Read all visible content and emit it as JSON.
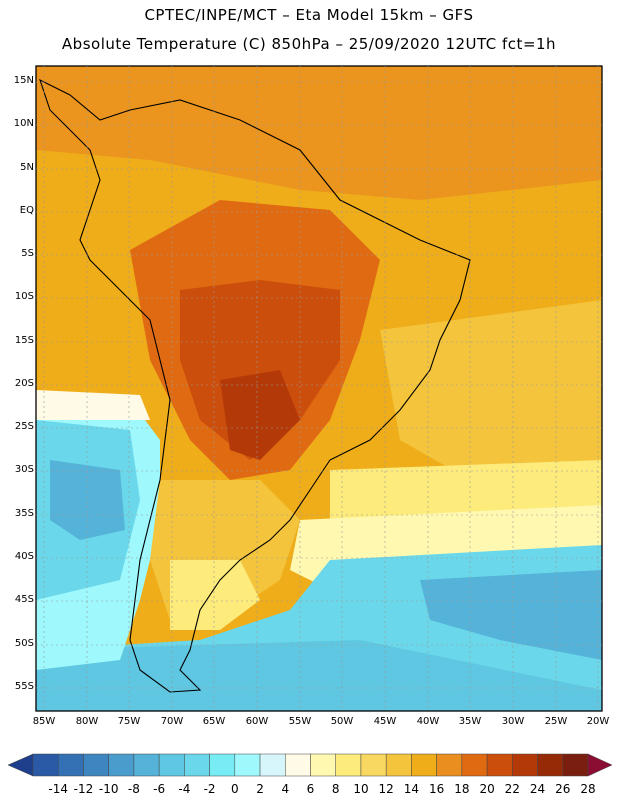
{
  "header": {
    "line1": "CPTEC/INPE/MCT –  Eta Model 15km – GFS",
    "line2": "Absolute Temperature (C) 850hPa – 25/09/2020 12UTC fct=1h"
  },
  "axes": {
    "lat_labels": [
      "15N",
      "10N",
      "5N",
      "EQ",
      "5S",
      "10S",
      "15S",
      "20S",
      "25S",
      "30S",
      "35S",
      "40S",
      "45S",
      "50S",
      "55S"
    ],
    "lon_labels": [
      "85W",
      "80W",
      "75W",
      "70W",
      "65W",
      "60W",
      "55W",
      "50W",
      "45W",
      "40W",
      "35W",
      "30W",
      "25W",
      "20W"
    ]
  },
  "colorbar": {
    "labels": [
      "-14",
      "-12",
      "-10",
      "-8",
      "-6",
      "-4",
      "-2",
      "0",
      "2",
      "4",
      "6",
      "8",
      "10",
      "12",
      "14",
      "16",
      "18",
      "20",
      "22",
      "24",
      "26",
      "28"
    ],
    "colors": [
      "#1e3f8c",
      "#2a5aa6",
      "#3470b4",
      "#3e86c0",
      "#4a9ccc",
      "#55b2d8",
      "#5fc7e2",
      "#6ad8ea",
      "#78ecf4",
      "#9ef8fc",
      "#d6f6fb",
      "#fffbe6",
      "#fff8b0",
      "#fdeb7c",
      "#f8d860",
      "#f3c43c",
      "#efad1a",
      "#ea8e20",
      "#e06a12",
      "#cc4e0c",
      "#b33a08",
      "#962a06",
      "#7a1f10",
      "#8c0d32"
    ]
  }
}
